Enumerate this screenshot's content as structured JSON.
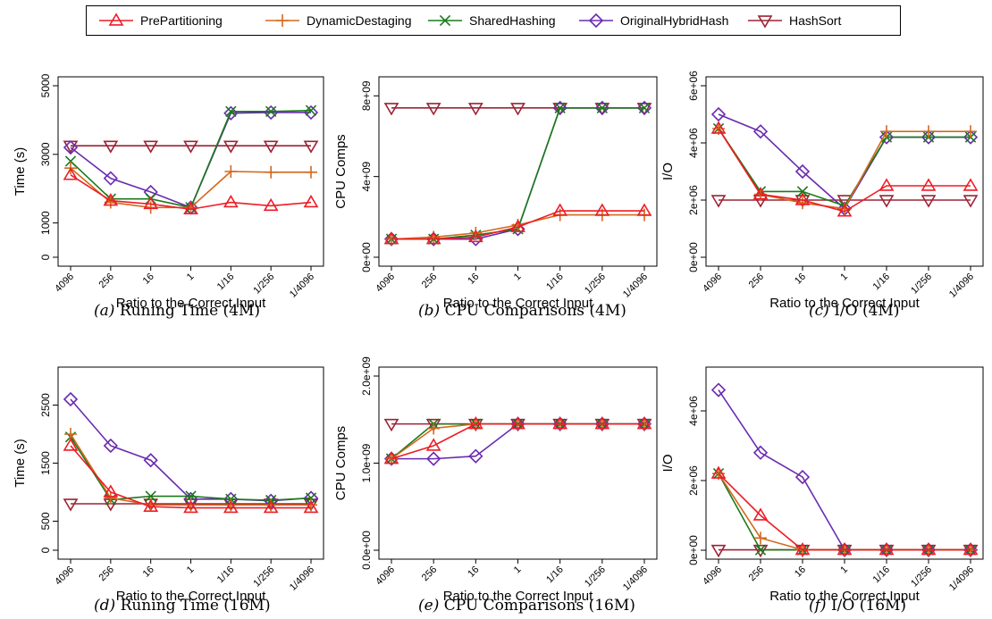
{
  "series_styles": [
    {
      "name": "PrePartitioning",
      "color": "#ee1c25",
      "marker": "triangle-up"
    },
    {
      "name": "DynamicDestaging",
      "color": "#d2691e",
      "marker": "plus"
    },
    {
      "name": "SharedHashing",
      "color": "#1a7a1a",
      "marker": "cross"
    },
    {
      "name": "OriginalHybridHash",
      "color": "#6a2bb0",
      "marker": "diamond"
    },
    {
      "name": "HashSort",
      "color": "#9b2335",
      "marker": "triangle-down"
    }
  ],
  "captions": [
    {
      "label": "(a)",
      "text": "Runing Time (4M)"
    },
    {
      "label": "(b)",
      "text": "CPU Comparisons (4M)"
    },
    {
      "label": "(c)",
      "text": "I/O (4M)"
    },
    {
      "label": "(d)",
      "text": "Runing Time (16M)"
    },
    {
      "label": "(e)",
      "text": "CPU Comparisons (16M)"
    },
    {
      "label": "(f)",
      "text": "I/O (16M)"
    }
  ],
  "chart_data": [
    {
      "type": "line",
      "xlabel": "Ratio to the Correct Input",
      "ylabel": "Time (s)",
      "categories": [
        "4096",
        "256",
        "16",
        "1",
        "1/16",
        "1/256",
        "1/4096"
      ],
      "ylim": [
        0,
        5000
      ],
      "yticks": [
        0,
        1000,
        3000,
        5000
      ],
      "ytick_labels": [
        "0",
        "1000",
        "3000",
        "5000"
      ],
      "series": [
        {
          "name": "PrePartitioning",
          "values": [
            2400,
            1650,
            1550,
            1400,
            1600,
            1500,
            1600
          ]
        },
        {
          "name": "DynamicDestaging",
          "values": [
            2600,
            1600,
            1450,
            1450,
            2500,
            2480,
            2480
          ]
        },
        {
          "name": "SharedHashing",
          "values": [
            2800,
            1700,
            1700,
            1450,
            4250,
            4250,
            4280
          ]
        },
        {
          "name": "OriginalHybridHash",
          "values": [
            3200,
            2300,
            1900,
            1450,
            4200,
            4220,
            4220
          ]
        },
        {
          "name": "HashSort",
          "values": [
            3250,
            3250,
            3250,
            3250,
            3250,
            3250,
            3250
          ]
        }
      ]
    },
    {
      "type": "line",
      "xlabel": "Ratio to the Correct Input",
      "ylabel": "CPU Comps",
      "categories": [
        "4096",
        "256",
        "16",
        "1",
        "1/16",
        "1/256",
        "1/4096"
      ],
      "ylim": [
        0,
        8500000000
      ],
      "yticks": [
        0,
        4000000000,
        8000000000
      ],
      "ytick_labels": [
        "0e+00",
        "4e+09",
        "8e+09"
      ],
      "series": [
        {
          "name": "PrePartitioning",
          "values": [
            900000000,
            900000000,
            1000000000,
            1500000000,
            2300000000,
            2300000000,
            2300000000
          ]
        },
        {
          "name": "DynamicDestaging",
          "values": [
            900000000,
            1000000000,
            1200000000,
            1600000000,
            2100000000,
            2100000000,
            2100000000
          ]
        },
        {
          "name": "SharedHashing",
          "values": [
            900000000,
            900000000,
            1100000000,
            1400000000,
            7400000000,
            7400000000,
            7400000000
          ]
        },
        {
          "name": "OriginalHybridHash",
          "values": [
            900000000,
            900000000,
            900000000,
            1400000000,
            7400000000,
            7400000000,
            7400000000
          ]
        },
        {
          "name": "HashSort",
          "values": [
            7400000000,
            7400000000,
            7400000000,
            7400000000,
            7400000000,
            7400000000,
            7400000000
          ]
        }
      ]
    },
    {
      "type": "line",
      "xlabel": "Ratio to the Correct Input",
      "ylabel": "I/O",
      "categories": [
        "4096",
        "256",
        "16",
        "1",
        "1/16",
        "1/256",
        "1/4096"
      ],
      "ylim": [
        0,
        6000000
      ],
      "yticks": [
        0,
        2000000,
        4000000,
        6000000
      ],
      "ytick_labels": [
        "0e+00",
        "2e+06",
        "4e+06",
        "6e+06"
      ],
      "series": [
        {
          "name": "PrePartitioning",
          "values": [
            4500000,
            2200000,
            2000000,
            1600000,
            2500000,
            2500000,
            2500000
          ]
        },
        {
          "name": "DynamicDestaging",
          "values": [
            4500000,
            2200000,
            1900000,
            1700000,
            4400000,
            4400000,
            4400000
          ]
        },
        {
          "name": "SharedHashing",
          "values": [
            4500000,
            2300000,
            2300000,
            1800000,
            4200000,
            4200000,
            4200000
          ]
        },
        {
          "name": "OriginalHybridHash",
          "values": [
            5000000,
            4400000,
            3000000,
            1700000,
            4200000,
            4200000,
            4200000
          ]
        },
        {
          "name": "HashSort",
          "values": [
            2000000,
            2000000,
            2000000,
            2000000,
            2000000,
            2000000,
            2000000
          ]
        }
      ]
    },
    {
      "type": "line",
      "xlabel": "Ratio to the Correct Input",
      "ylabel": "Time (s)",
      "categories": [
        "4096",
        "256",
        "16",
        "1",
        "1/16",
        "1/256",
        "1/4096"
      ],
      "ylim": [
        0,
        3000
      ],
      "yticks": [
        0,
        500,
        1500,
        2500
      ],
      "ytick_labels": [
        "0",
        "500",
        "1500",
        "2500"
      ],
      "series": [
        {
          "name": "PrePartitioning",
          "values": [
            1800,
            1000,
            750,
            730,
            730,
            730,
            730
          ]
        },
        {
          "name": "DynamicDestaging",
          "values": [
            2000,
            900,
            780,
            780,
            780,
            780,
            780
          ]
        },
        {
          "name": "SharedHashing",
          "values": [
            1950,
            870,
            930,
            930,
            880,
            860,
            900
          ]
        },
        {
          "name": "OriginalHybridHash",
          "values": [
            2600,
            1800,
            1550,
            880,
            880,
            850,
            900
          ]
        },
        {
          "name": "HashSort",
          "values": [
            800,
            800,
            800,
            800,
            800,
            800,
            800
          ]
        }
      ]
    },
    {
      "type": "line",
      "xlabel": "Ratio to the Correct Input",
      "ylabel": "CPU Comps",
      "categories": [
        "4096",
        "256",
        "16",
        "1",
        "1/16",
        "1/256",
        "1/4096"
      ],
      "ylim": [
        0,
        2000000000
      ],
      "yticks": [
        0,
        1000000000,
        2000000000
      ],
      "ytick_labels": [
        "0.0e+00",
        "1.0e+09",
        "2.0e+09"
      ],
      "series": [
        {
          "name": "PrePartitioning",
          "values": [
            1050000000,
            1200000000,
            1450000000,
            1450000000,
            1450000000,
            1450000000,
            1450000000
          ]
        },
        {
          "name": "DynamicDestaging",
          "values": [
            1050000000,
            1400000000,
            1450000000,
            1450000000,
            1450000000,
            1450000000,
            1450000000
          ]
        },
        {
          "name": "SharedHashing",
          "values": [
            1050000000,
            1450000000,
            1450000000,
            1450000000,
            1450000000,
            1450000000,
            1450000000
          ]
        },
        {
          "name": "OriginalHybridHash",
          "values": [
            1050000000,
            1050000000,
            1080000000,
            1450000000,
            1450000000,
            1450000000,
            1450000000
          ]
        },
        {
          "name": "HashSort",
          "values": [
            1450000000,
            1450000000,
            1450000000,
            1450000000,
            1450000000,
            1450000000,
            1450000000
          ]
        }
      ]
    },
    {
      "type": "line",
      "xlabel": "Ratio to the Correct Input",
      "ylabel": "I/O",
      "categories": [
        "4096",
        "256",
        "16",
        "1",
        "1/16",
        "1/256",
        "1/4096"
      ],
      "ylim": [
        0,
        5000000
      ],
      "yticks": [
        0,
        2000000,
        4000000
      ],
      "ytick_labels": [
        "0e+00",
        "2e+06",
        "4e+06"
      ],
      "series": [
        {
          "name": "PrePartitioning",
          "values": [
            2200000,
            1000000,
            10000,
            10000,
            10000,
            10000,
            10000
          ]
        },
        {
          "name": "DynamicDestaging",
          "values": [
            2200000,
            350000,
            10000,
            10000,
            10000,
            10000,
            10000
          ]
        },
        {
          "name": "SharedHashing",
          "values": [
            2200000,
            10000,
            10000,
            10000,
            10000,
            10000,
            10000
          ]
        },
        {
          "name": "OriginalHybridHash",
          "values": [
            4600000,
            2800000,
            2100000,
            10000,
            10000,
            10000,
            10000
          ]
        },
        {
          "name": "HashSort",
          "values": [
            10000,
            10000,
            10000,
            10000,
            10000,
            10000,
            10000
          ]
        }
      ]
    }
  ]
}
